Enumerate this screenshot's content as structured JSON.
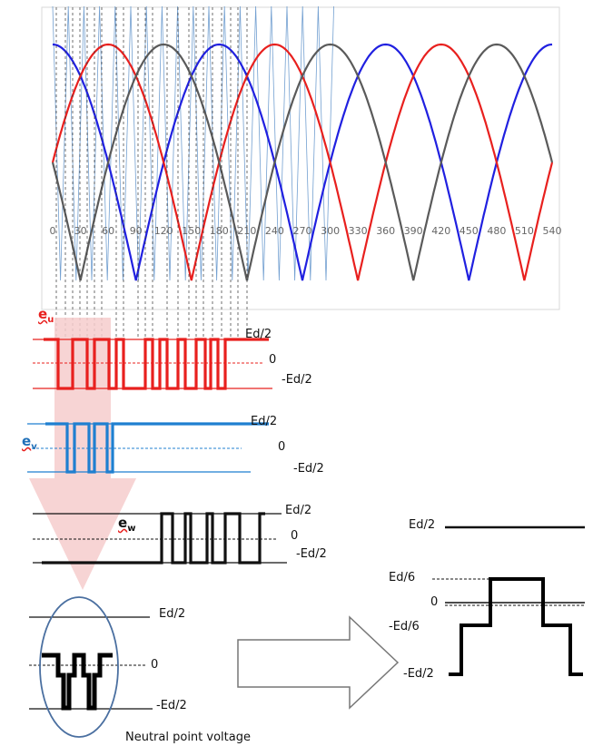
{
  "carrier": {
    "x_ticks": [
      "0",
      "30",
      "60",
      "90",
      "120",
      "150",
      "180",
      "210",
      "240",
      "270",
      "300",
      "330",
      "360",
      "390",
      "420",
      "450",
      "480",
      "510",
      "540"
    ]
  },
  "colors": {
    "u": "#e8201e",
    "v": "#2020e0",
    "w": "#5a5a5a",
    "carrier": "#5b8fc9",
    "eu_wave": "#e8201e",
    "ev_wave": "#1f7fd0",
    "ew_wave": "#111111",
    "arrow_fill": "#f6cccc"
  },
  "waveforms": {
    "eu": {
      "label": "e",
      "sub": "u",
      "top": "Ed/2",
      "mid": "0",
      "bottom": "-Ed/2"
    },
    "ev": {
      "label": "e",
      "sub": "v",
      "top": "Ed/2",
      "mid": "0",
      "bottom": "-Ed/2"
    },
    "ew": {
      "label": "e",
      "sub": "w",
      "top": "Ed/2",
      "mid": "0",
      "bottom": "-Ed/2"
    }
  },
  "neutral": {
    "top": "Ed/2",
    "mid": "0",
    "bottom": "-Ed/2",
    "caption": "Neutral point voltage"
  },
  "result": {
    "top": "Ed/2",
    "l1": "Ed/6",
    "zero": "0",
    "l2": "-Ed/6",
    "bottom": "-Ed/2"
  }
}
